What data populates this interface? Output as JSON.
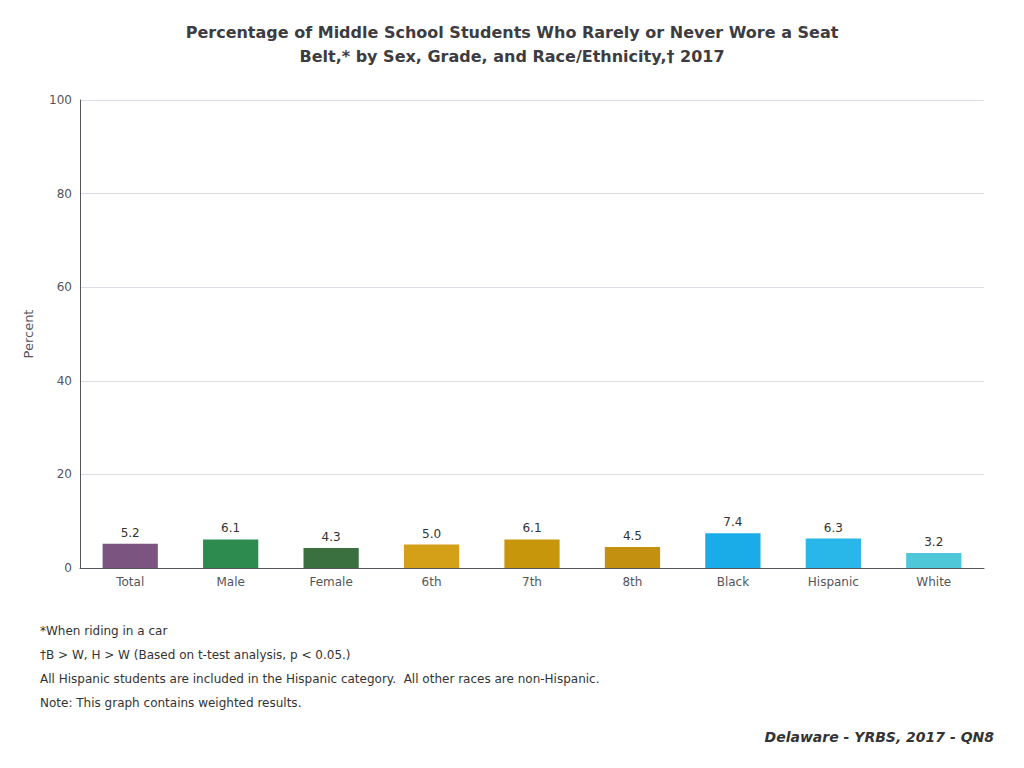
{
  "chart_data": {
    "type": "bar",
    "title": "Percentage of Middle School Students Who Rarely or Never Wore a Seat\nBelt,* by Sex, Grade, and Race/Ethnicity,† 2017",
    "ylabel": "Percent",
    "categories": [
      "Total",
      "Male",
      "Female",
      "6th",
      "7th",
      "8th",
      "Black",
      "Hispanic",
      "White"
    ],
    "values": [
      5.2,
      6.1,
      4.3,
      5.0,
      6.1,
      4.5,
      7.4,
      6.3,
      3.2
    ],
    "value_labels": [
      "5.2",
      "6.1",
      "4.3",
      "5.0",
      "6.1",
      "4.5",
      "7.4",
      "6.3",
      "3.2"
    ],
    "colors": [
      "#7B5580",
      "#2E8B50",
      "#3A7040",
      "#D4A017",
      "#C8960A",
      "#C49010",
      "#1AACE8",
      "#29B6E8",
      "#4EC8D8"
    ],
    "ylim": [
      0,
      100
    ],
    "yticks": [
      0,
      20,
      40,
      60,
      80,
      100
    ],
    "grid": true,
    "data_labels": true,
    "annotations": [
      "*When riding in a car",
      "†B > W, H > W (Based on t-test analysis, p < 0.05.)",
      "All Hispanic students are included in the Hispanic category.  All other races are non-Hispanic.",
      "Note: This graph contains weighted results.",
      "Delaware - YRBS, 2017 - QN8"
    ]
  }
}
